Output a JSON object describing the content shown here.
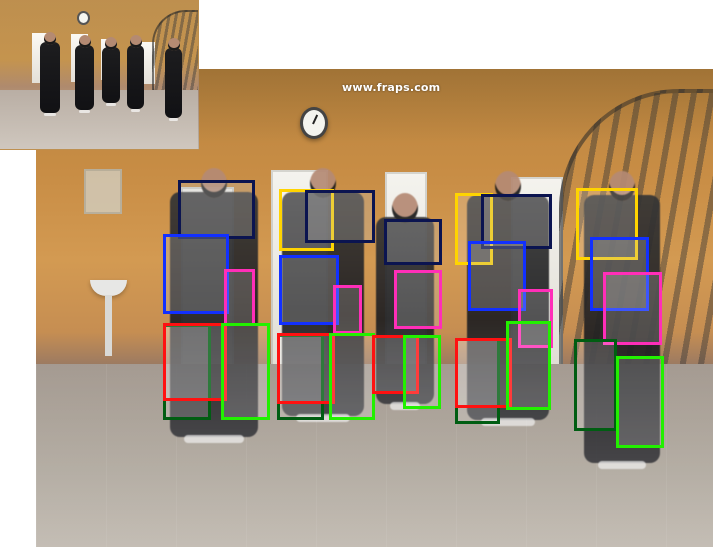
{
  "inset": {
    "watermark_text": ""
  },
  "main": {
    "watermark_text": "www.fraps.com"
  },
  "colors": {
    "yellow": "#ffd400",
    "navy": "#0b1450",
    "blue": "#1230ff",
    "magenta": "#ff2eb8",
    "red": "#ff1111",
    "green": "#22f000",
    "dark_green": "#005d12"
  },
  "icons": {
    "clock": "clock-icon"
  }
}
